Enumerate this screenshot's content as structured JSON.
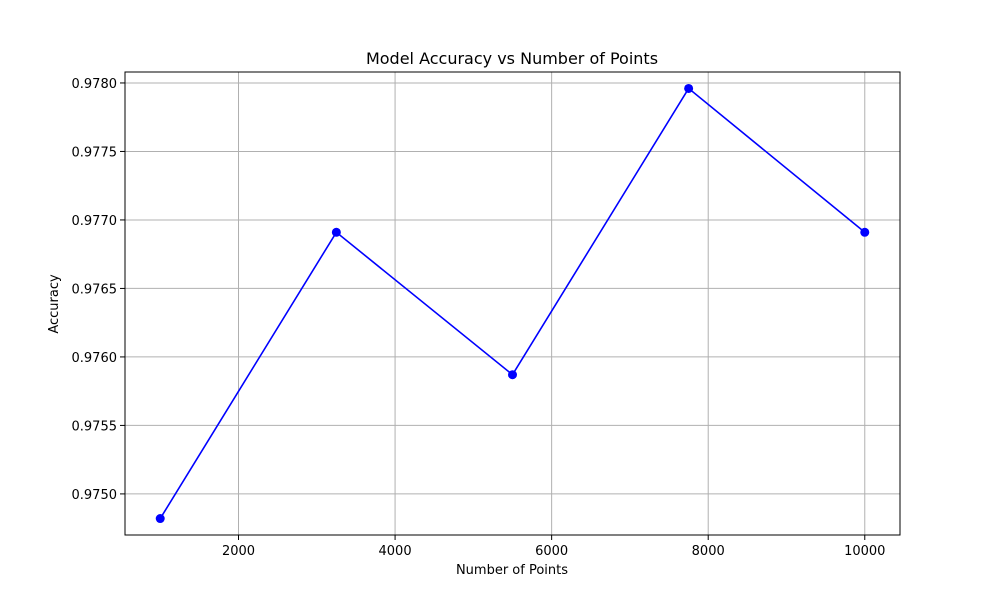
{
  "chart_data": {
    "type": "line",
    "title": "Model Accuracy vs Number of Points",
    "xlabel": "Number of Points",
    "ylabel": "Accuracy",
    "x": [
      1000,
      3250,
      5500,
      7750,
      10000
    ],
    "series": [
      {
        "values": [
          0.97482,
          0.97691,
          0.97587,
          0.97796,
          0.97691
        ]
      }
    ],
    "xlim": [
      550,
      10450
    ],
    "ylim": [
      0.9747,
      0.97808
    ],
    "xticks": [
      2000,
      4000,
      6000,
      8000,
      10000
    ],
    "xtick_labels": [
      "2000",
      "4000",
      "6000",
      "8000",
      "10000"
    ],
    "yticks": [
      0.975,
      0.9755,
      0.976,
      0.9765,
      0.977,
      0.9775,
      0.978
    ],
    "ytick_labels": [
      "0.9750",
      "0.9755",
      "0.9760",
      "0.9765",
      "0.9770",
      "0.9775",
      "0.9780"
    ],
    "grid": true,
    "marker": "circle",
    "line_color": "#0000ff",
    "grid_color": "#b0b0b0"
  }
}
